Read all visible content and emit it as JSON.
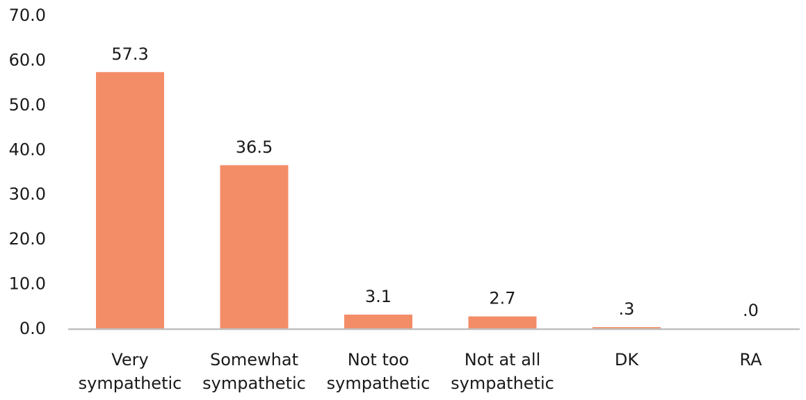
{
  "chart_data": {
    "type": "bar",
    "categories": [
      [
        "Very",
        "sympathetic"
      ],
      [
        "Somewhat",
        "sympathetic"
      ],
      [
        "Not too",
        "sympathetic"
      ],
      [
        "Not at all",
        "sympathetic"
      ],
      [
        "DK"
      ],
      [
        "RA"
      ]
    ],
    "values": [
      57.3,
      36.5,
      3.1,
      2.7,
      0.3,
      0.0
    ],
    "value_labels": [
      "57.3",
      "36.5",
      "3.1",
      "2.7",
      ".3",
      ".0"
    ],
    "ylim": [
      0,
      70
    ],
    "yticks": [
      0,
      10,
      20,
      30,
      40,
      50,
      60,
      70
    ],
    "ytick_labels": [
      "0.0",
      "10.0",
      "20.0",
      "30.0",
      "40.0",
      "50.0",
      "60.0",
      "70.0"
    ],
    "gridlines": false,
    "legend": "none",
    "title": "",
    "xlabel": "",
    "ylabel": "",
    "bar_color": "#F38D68",
    "axis_color": "#BFBFBF"
  }
}
